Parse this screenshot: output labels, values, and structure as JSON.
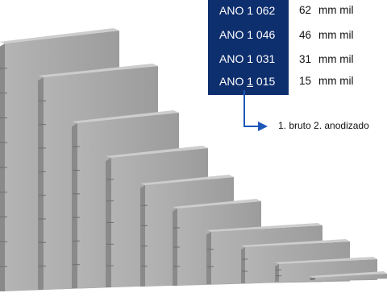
{
  "product_codes": [
    {
      "prefix": "ANO 1 ",
      "digit": "0",
      "suffix": "62"
    },
    {
      "prefix": "ANO 1 ",
      "digit": "0",
      "suffix": "46"
    },
    {
      "prefix": "ANO 1 ",
      "digit": "0",
      "suffix": "31"
    },
    {
      "prefix": "ANO ",
      "digit": "1",
      "suffix": " 015"
    }
  ],
  "sizes": [
    {
      "value": "62",
      "unit": "mm mil"
    },
    {
      "value": "46",
      "unit": "mm mil"
    },
    {
      "value": "31",
      "unit": "mm mil"
    },
    {
      "value": "15",
      "unit": "mm mil"
    }
  ],
  "finish_note": "1. bruto   2. anodizado",
  "colors": {
    "code_box": "#0e2f6e",
    "arrow": "#1d57b8",
    "panel_front": "#a9a9a9",
    "panel_top": "#cdcdcd",
    "panel_side": "#8a8a8a"
  }
}
